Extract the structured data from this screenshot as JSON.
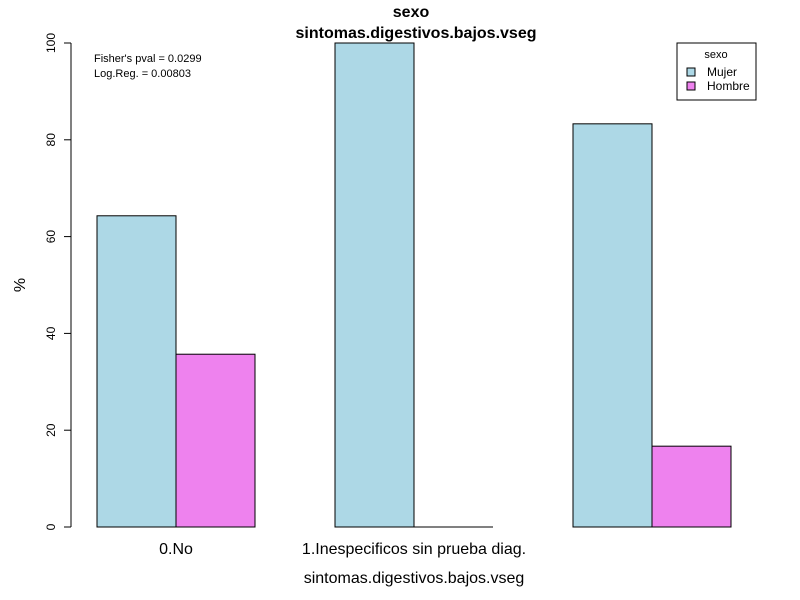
{
  "chart_data": {
    "type": "bar",
    "title": "sexo",
    "subtitle": "sintomas.digestivos.bajos.vseg",
    "xlabel": "sintomas.digestivos.bajos.vseg",
    "ylabel": "%",
    "ylim": [
      0,
      100
    ],
    "yticks": [
      0,
      20,
      40,
      60,
      80,
      100
    ],
    "categories": [
      "0.No",
      "1.Inespecificos sin prueba diag.",
      ""
    ],
    "series": [
      {
        "name": "Mujer",
        "color": "#ADD8E6",
        "values": [
          64.3,
          100,
          83.3
        ]
      },
      {
        "name": "Hombre",
        "color": "#EE82EE",
        "values": [
          35.7,
          0,
          16.7
        ]
      }
    ],
    "grid": false,
    "legend": {
      "title": "sexo",
      "placement": "top-right"
    },
    "annotations": [
      "Fisher's pval = 0.0299",
      "Log.Reg. = 0.00803"
    ]
  }
}
